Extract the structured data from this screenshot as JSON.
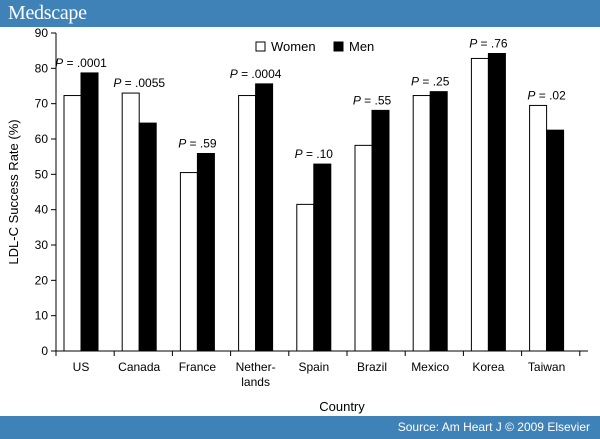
{
  "header": {
    "logo": "Medscape"
  },
  "footer": {
    "source": "Source: Am Heart J © 2009 Elsevier"
  },
  "colors": {
    "bar_band": "#3f82b8",
    "women": "#ffffff",
    "men": "#000000"
  },
  "chart_data": {
    "type": "bar",
    "title": "",
    "xlabel": "Country",
    "ylabel": "LDL-C Success Rate (%)",
    "ylim": [
      0,
      90
    ],
    "yticks": [
      0,
      10,
      20,
      30,
      40,
      50,
      60,
      70,
      80,
      90
    ],
    "categories": [
      [
        "US"
      ],
      [
        "Canada"
      ],
      [
        "France"
      ],
      [
        "Nether-",
        "lands"
      ],
      [
        "Spain"
      ],
      [
        "Brazil"
      ],
      [
        "Mexico"
      ],
      [
        "Korea"
      ],
      [
        "Taiwan"
      ]
    ],
    "series": [
      {
        "name": "Women",
        "values": [
          72.3,
          73.0,
          50.5,
          72.3,
          41.5,
          58.2,
          72.3,
          82.8,
          69.5
        ]
      },
      {
        "name": "Men",
        "values": [
          78.7,
          64.5,
          55.9,
          75.6,
          52.9,
          68.1,
          73.4,
          84.2,
          62.5
        ]
      }
    ],
    "annotations": [
      {
        "prefix": "P",
        "text": " = .0001"
      },
      {
        "prefix": "P",
        "text": " = .0055"
      },
      {
        "prefix": "P",
        "text": " = .59"
      },
      {
        "prefix": "P",
        "text": " = .0004"
      },
      {
        "prefix": "P",
        "text": " = .10"
      },
      {
        "prefix": "P",
        "text": " = .55"
      },
      {
        "prefix": "P",
        "text": " = .25"
      },
      {
        "prefix": "P",
        "text": " = .76"
      },
      {
        "prefix": "P",
        "text": " = .02"
      }
    ],
    "legend_position": "top-center",
    "grid": false
  }
}
